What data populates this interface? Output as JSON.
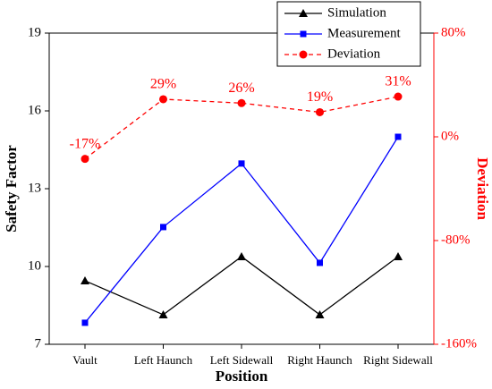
{
  "chart_data": {
    "type": "line",
    "x_label": "Position",
    "y_label": "Safety Factor",
    "y2_label": "Deviation",
    "categories": [
      "Vault",
      "Left Haunch",
      "Left Sidewall",
      "Right Haunch",
      "Right Sidewall"
    ],
    "series": [
      {
        "name": "Simulation",
        "color": "#000000",
        "marker": "triangle",
        "dash": false,
        "values": [
          9.45,
          8.14,
          10.38,
          8.14,
          10.38
        ]
      },
      {
        "name": "Measurement",
        "color": "#0000ff",
        "marker": "square",
        "dash": false,
        "values": [
          7.83,
          11.52,
          13.97,
          10.14,
          15.0
        ]
      },
      {
        "name": "Deviation",
        "color": "#ff0000",
        "marker": "circle",
        "dash": true,
        "axis": "y2",
        "values": [
          -17,
          29,
          26,
          19,
          31
        ],
        "value_labels": [
          "-17%",
          "29%",
          "26%",
          "19%",
          "31%"
        ]
      }
    ],
    "ylim": [
      7,
      19
    ],
    "yticks": [
      7,
      10,
      13,
      16,
      19
    ],
    "y2lim": [
      -160,
      80
    ],
    "y2ticks": [
      {
        "value": -160,
        "label": "-160%"
      },
      {
        "value": -80,
        "label": "-80%"
      },
      {
        "value": 0,
        "label": "0%"
      },
      {
        "value": 80,
        "label": "80%"
      }
    ],
    "legend": "upper right"
  }
}
